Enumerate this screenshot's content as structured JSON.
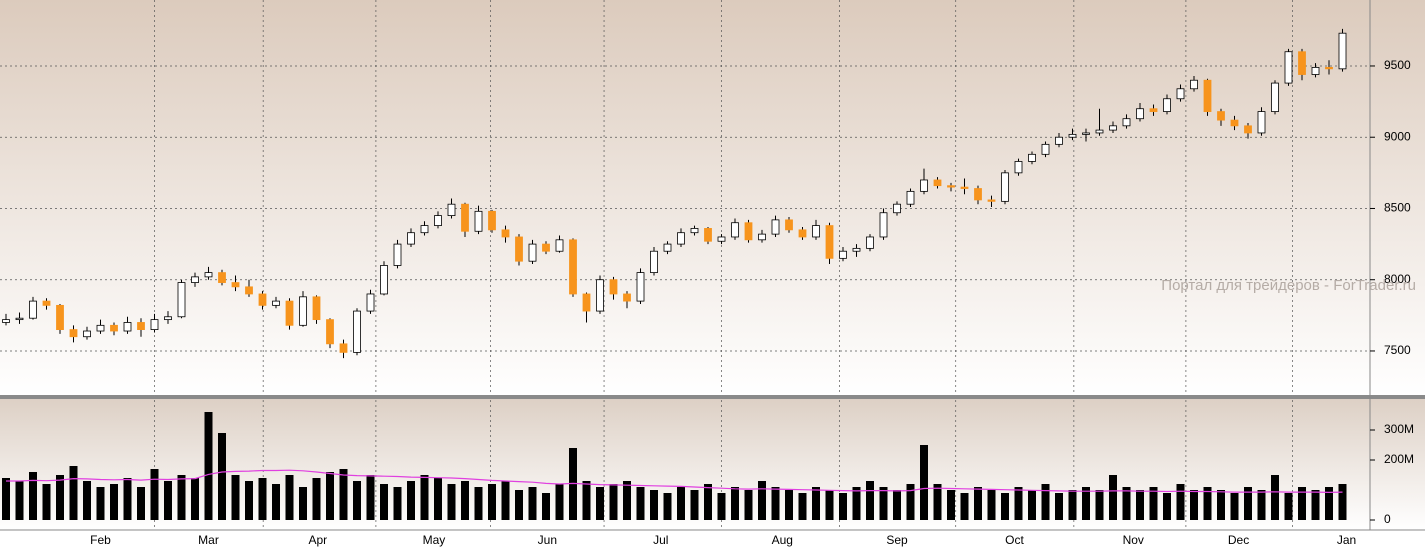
{
  "chart_data": {
    "type": "candlestick",
    "watermark": "Портал для трейдеров - ForTrader.ru",
    "ylim": [
      7191,
      9963
    ],
    "yticks": [
      7500,
      8000,
      8500,
      9000,
      9500
    ],
    "grid": true,
    "xticks": [
      {
        "value": 7,
        "label": "Feb"
      },
      {
        "value": 15,
        "label": "Mar"
      },
      {
        "value": 23.1,
        "label": "Apr"
      },
      {
        "value": 31.7,
        "label": "May"
      },
      {
        "value": 40.1,
        "label": "Jun"
      },
      {
        "value": 48.5,
        "label": "Jul"
      },
      {
        "value": 57.5,
        "label": "Aug"
      },
      {
        "value": 66,
        "label": "Sep"
      },
      {
        "value": 74.7,
        "label": "Oct"
      },
      {
        "value": 83.5,
        "label": "Nov"
      },
      {
        "value": 91.3,
        "label": "Dec"
      },
      {
        "value": 99.3,
        "label": "Jan"
      }
    ],
    "up_color": "#ffffff",
    "down_color": "#f7941d",
    "ohlc": [
      [
        7700,
        7760,
        7680,
        7720
      ],
      [
        7720,
        7770,
        7690,
        7730
      ],
      [
        7730,
        7880,
        7720,
        7850
      ],
      [
        7850,
        7870,
        7790,
        7820
      ],
      [
        7820,
        7830,
        7620,
        7650
      ],
      [
        7650,
        7680,
        7560,
        7600
      ],
      [
        7600,
        7670,
        7580,
        7640
      ],
      [
        7640,
        7720,
        7620,
        7680
      ],
      [
        7680,
        7700,
        7610,
        7640
      ],
      [
        7640,
        7740,
        7620,
        7700
      ],
      [
        7700,
        7730,
        7600,
        7650
      ],
      [
        7650,
        7760,
        7630,
        7720
      ],
      [
        7720,
        7780,
        7690,
        7740
      ],
      [
        7740,
        8000,
        7730,
        7980
      ],
      [
        7980,
        8050,
        7950,
        8020
      ],
      [
        8020,
        8090,
        8000,
        8050
      ],
      [
        8050,
        8070,
        7960,
        7980
      ],
      [
        7980,
        8030,
        7920,
        7950
      ],
      [
        7950,
        8000,
        7880,
        7900
      ],
      [
        7900,
        7920,
        7790,
        7820
      ],
      [
        7820,
        7880,
        7800,
        7850
      ],
      [
        7850,
        7870,
        7650,
        7680
      ],
      [
        7680,
        7920,
        7670,
        7880
      ],
      [
        7880,
        7890,
        7690,
        7720
      ],
      [
        7720,
        7730,
        7520,
        7550
      ],
      [
        7550,
        7580,
        7450,
        7490
      ],
      [
        7490,
        7800,
        7470,
        7780
      ],
      [
        7780,
        7930,
        7760,
        7900
      ],
      [
        7900,
        8130,
        7890,
        8100
      ],
      [
        8100,
        8280,
        8080,
        8250
      ],
      [
        8250,
        8360,
        8230,
        8330
      ],
      [
        8330,
        8410,
        8310,
        8380
      ],
      [
        8380,
        8480,
        8360,
        8450
      ],
      [
        8450,
        8570,
        8430,
        8530
      ],
      [
        8530,
        8540,
        8300,
        8340
      ],
      [
        8340,
        8520,
        8320,
        8480
      ],
      [
        8480,
        8490,
        8330,
        8350
      ],
      [
        8350,
        8380,
        8260,
        8300
      ],
      [
        8300,
        8320,
        8100,
        8130
      ],
      [
        8130,
        8280,
        8110,
        8250
      ],
      [
        8250,
        8270,
        8180,
        8200
      ],
      [
        8200,
        8310,
        8190,
        8280
      ],
      [
        8280,
        8290,
        7880,
        7900
      ],
      [
        7900,
        7910,
        7700,
        7780
      ],
      [
        7780,
        8030,
        7760,
        8000
      ],
      [
        8000,
        8020,
        7860,
        7900
      ],
      [
        7900,
        7920,
        7800,
        7850
      ],
      [
        7850,
        8080,
        7830,
        8050
      ],
      [
        8050,
        8230,
        8030,
        8200
      ],
      [
        8200,
        8270,
        8180,
        8250
      ],
      [
        8250,
        8360,
        8230,
        8330
      ],
      [
        8330,
        8380,
        8310,
        8360
      ],
      [
        8360,
        8370,
        8250,
        8270
      ],
      [
        8270,
        8320,
        8250,
        8300
      ],
      [
        8300,
        8430,
        8280,
        8400
      ],
      [
        8400,
        8420,
        8260,
        8280
      ],
      [
        8280,
        8350,
        8260,
        8320
      ],
      [
        8320,
        8450,
        8300,
        8420
      ],
      [
        8420,
        8440,
        8330,
        8350
      ],
      [
        8350,
        8370,
        8280,
        8300
      ],
      [
        8300,
        8420,
        8280,
        8380
      ],
      [
        8380,
        8400,
        8110,
        8150
      ],
      [
        8150,
        8230,
        8130,
        8200
      ],
      [
        8200,
        8250,
        8160,
        8220
      ],
      [
        8220,
        8320,
        8200,
        8300
      ],
      [
        8300,
        8500,
        8280,
        8470
      ],
      [
        8470,
        8550,
        8450,
        8530
      ],
      [
        8530,
        8640,
        8510,
        8620
      ],
      [
        8620,
        8780,
        8600,
        8700
      ],
      [
        8700,
        8720,
        8640,
        8660
      ],
      [
        8660,
        8680,
        8620,
        8650
      ],
      [
        8650,
        8710,
        8600,
        8640
      ],
      [
        8640,
        8660,
        8530,
        8560
      ],
      [
        8560,
        8590,
        8510,
        8550
      ],
      [
        8550,
        8770,
        8530,
        8750
      ],
      [
        8750,
        8850,
        8730,
        8830
      ],
      [
        8830,
        8900,
        8810,
        8880
      ],
      [
        8880,
        8970,
        8860,
        8950
      ],
      [
        8950,
        9030,
        8930,
        9000
      ],
      [
        9000,
        9060,
        8980,
        9020
      ],
      [
        9020,
        9060,
        8970,
        9030
      ],
      [
        9030,
        9200,
        9010,
        9050
      ],
      [
        9050,
        9110,
        9030,
        9080
      ],
      [
        9080,
        9160,
        9060,
        9130
      ],
      [
        9130,
        9240,
        9110,
        9200
      ],
      [
        9200,
        9230,
        9150,
        9180
      ],
      [
        9180,
        9300,
        9160,
        9270
      ],
      [
        9270,
        9370,
        9250,
        9340
      ],
      [
        9340,
        9430,
        9320,
        9400
      ],
      [
        9400,
        9410,
        9150,
        9180
      ],
      [
        9180,
        9200,
        9080,
        9120
      ],
      [
        9120,
        9150,
        9050,
        9080
      ],
      [
        9080,
        9100,
        8990,
        9030
      ],
      [
        9030,
        9210,
        9010,
        9180
      ],
      [
        9180,
        9400,
        9160,
        9380
      ],
      [
        9380,
        9620,
        9360,
        9600
      ],
      [
        9600,
        9620,
        9400,
        9440
      ],
      [
        9440,
        9520,
        9420,
        9490
      ],
      [
        9490,
        9540,
        9440,
        9480
      ],
      [
        9480,
        9760,
        9460,
        9730
      ]
    ],
    "volume": {
      "color": "#000000",
      "ma_color": "#e040e0",
      "ylim": [
        0,
        400
      ],
      "yticks": [
        0,
        {
          "value": 200,
          "label": "200M"
        },
        {
          "value": 300,
          "label": "300M"
        }
      ],
      "values": [
        140,
        130,
        160,
        120,
        150,
        180,
        130,
        110,
        120,
        140,
        110,
        170,
        130,
        150,
        140,
        360,
        290,
        150,
        130,
        140,
        120,
        150,
        110,
        140,
        160,
        170,
        130,
        150,
        120,
        110,
        130,
        150,
        140,
        120,
        130,
        110,
        120,
        130,
        100,
        110,
        90,
        120,
        240,
        130,
        110,
        120,
        130,
        110,
        100,
        90,
        110,
        100,
        120,
        90,
        110,
        100,
        130,
        110,
        100,
        90,
        110,
        100,
        90,
        110,
        130,
        110,
        100,
        120,
        250,
        120,
        100,
        90,
        110,
        100,
        90,
        110,
        100,
        120,
        90,
        100,
        110,
        100,
        150,
        110,
        100,
        110,
        90,
        120,
        100,
        110,
        100,
        90,
        110,
        100,
        150,
        90,
        110,
        100,
        110,
        120
      ],
      "ma": [
        130,
        130,
        132,
        131,
        133,
        138,
        137,
        135,
        134,
        135,
        133,
        136,
        135,
        137,
        138,
        152,
        160,
        162,
        163,
        165,
        165,
        166,
        164,
        160,
        155,
        150,
        148,
        147,
        146,
        145,
        143,
        142,
        141,
        140,
        138,
        135,
        132,
        130,
        128,
        126,
        122,
        120,
        122,
        120,
        118,
        117,
        116,
        115,
        114,
        113,
        112,
        110,
        108,
        106,
        104,
        103,
        104,
        103,
        102,
        101,
        100,
        99,
        98,
        97,
        98,
        98,
        97,
        98,
        105,
        106,
        105,
        104,
        103,
        102,
        101,
        100,
        99,
        98,
        97,
        96,
        96,
        96,
        97,
        97,
        96,
        96,
        95,
        96,
        95,
        95,
        94,
        93,
        93,
        93,
        94,
        93,
        93,
        93,
        92,
        93
      ]
    }
  }
}
